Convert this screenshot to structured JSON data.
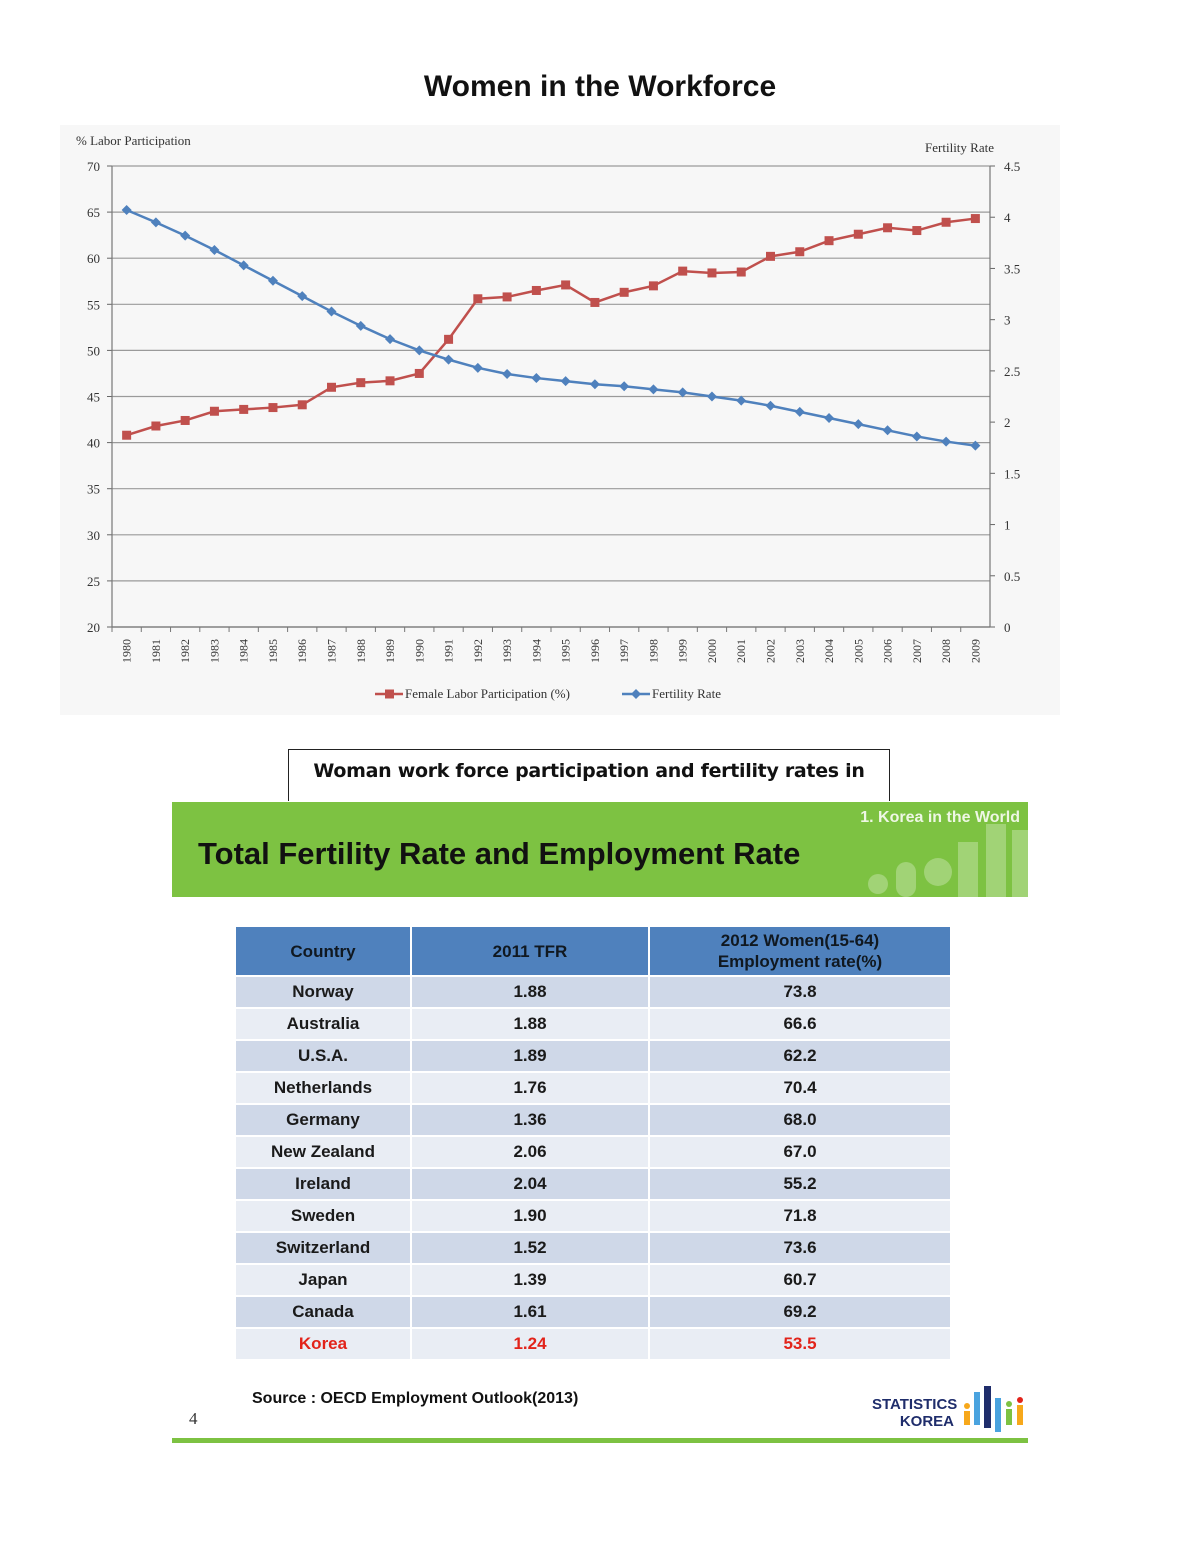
{
  "page_title": "Women in the Workforce",
  "chart_data": {
    "type": "line",
    "y_left_label": "% Labor Participation",
    "y_right_label": "Fertility Rate",
    "ylim_left": [
      20,
      70
    ],
    "yticks_left": [
      20,
      25,
      30,
      35,
      40,
      45,
      50,
      55,
      60,
      65,
      70
    ],
    "ylim_right": [
      0,
      4.5
    ],
    "yticks_right": [
      "0",
      "0.5",
      "1",
      "1.5",
      "2",
      "2.5",
      "3",
      "3.5",
      "4",
      "4.5"
    ],
    "x": [
      "1980",
      "1981",
      "1982",
      "1983",
      "1984",
      "1985",
      "1986",
      "1987",
      "1988",
      "1989",
      "1990",
      "1991",
      "1992",
      "1993",
      "1994",
      "1995",
      "1996",
      "1997",
      "1998",
      "1999",
      "2000",
      "2001",
      "2002",
      "2003",
      "2004",
      "2005",
      "2006",
      "2007",
      "2008",
      "2009"
    ],
    "grid": "horizontal",
    "legend_position": "bottom",
    "series": [
      {
        "name": "Female Labor Participation (%)",
        "axis": "left",
        "color": "#c0504d",
        "marker": "square",
        "values": [
          40.8,
          41.8,
          42.4,
          43.4,
          43.6,
          43.8,
          44.1,
          46.0,
          46.5,
          46.7,
          47.5,
          51.2,
          55.6,
          55.8,
          56.5,
          57.1,
          55.2,
          56.3,
          57.0,
          58.6,
          58.4,
          58.5,
          60.2,
          60.7,
          61.9,
          62.6,
          63.3,
          63.0,
          63.9,
          64.3
        ]
      },
      {
        "name": "Fertility Rate",
        "axis": "right",
        "color": "#4f81bd",
        "marker": "diamond",
        "values": [
          4.07,
          3.95,
          3.82,
          3.68,
          3.53,
          3.38,
          3.23,
          3.08,
          2.94,
          2.81,
          2.7,
          2.61,
          2.53,
          2.47,
          2.43,
          2.4,
          2.37,
          2.35,
          2.32,
          2.29,
          2.25,
          2.21,
          2.16,
          2.1,
          2.04,
          1.98,
          1.92,
          1.86,
          1.81,
          1.77
        ]
      }
    ]
  },
  "caption": "Woman work force participation and fertility rates in Brazil",
  "banner": {
    "title": "Total Fertility Rate and Employment Rate",
    "subtitle": "1.  Korea in the World",
    "color": "#7dc242"
  },
  "table": {
    "headers": [
      "Country",
      "2011 TFR",
      "2012 Women(15-64)",
      "Employment  rate(%)"
    ],
    "rows": [
      {
        "country": "Norway",
        "tfr": "1.88",
        "emp": "73.8"
      },
      {
        "country": "Australia",
        "tfr": "1.88",
        "emp": "66.6"
      },
      {
        "country": "U.S.A.",
        "tfr": "1.89",
        "emp": "62.2"
      },
      {
        "country": "Netherlands",
        "tfr": "1.76",
        "emp": "70.4"
      },
      {
        "country": "Germany",
        "tfr": "1.36",
        "emp": "68.0"
      },
      {
        "country": "New Zealand",
        "tfr": "2.06",
        "emp": "67.0"
      },
      {
        "country": "Ireland",
        "tfr": "2.04",
        "emp": "55.2"
      },
      {
        "country": "Sweden",
        "tfr": "1.90",
        "emp": "71.8"
      },
      {
        "country": "Switzerland",
        "tfr": "1.52",
        "emp": "73.6"
      },
      {
        "country": "Japan",
        "tfr": "1.39",
        "emp": "60.7"
      },
      {
        "country": "Canada",
        "tfr": "1.61",
        "emp": "69.2"
      },
      {
        "country": "Korea",
        "tfr": "1.24",
        "emp": "53.5"
      }
    ],
    "highlight_color": "#e2231a",
    "header_color": "#4f81bd"
  },
  "source": "Source : OECD Employment Outlook(2013)",
  "page_number": "4",
  "logo": {
    "line1": "STATISTICS",
    "line2": "KOREA",
    "colors": [
      "#f7a81b",
      "#4aa3df",
      "#1f2d6b",
      "#7dc242",
      "#e2231a"
    ]
  }
}
